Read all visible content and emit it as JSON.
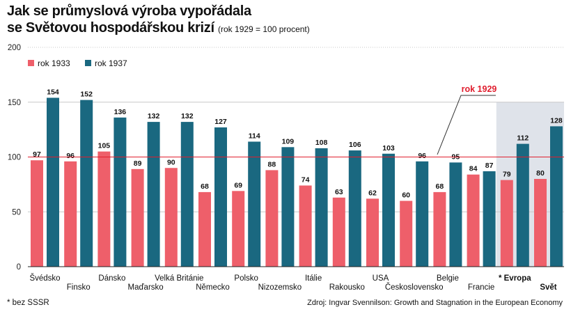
{
  "title_line1": "Jak se průmyslová výroba vypořádala",
  "title_line2": "se Světovou hospodářskou krizí",
  "subtitle": "(rok 1929 = 100 procent)",
  "footnote": "* bez SSSR",
  "source": "Zdroj: Ingvar Svennilson: Growth and Stagnation in the European Economy",
  "colors": {
    "rok1933": "#ee5f6a",
    "rok1937": "#1a6880",
    "reference": "#e01e2e",
    "highlight_bg": "#dfe3ea"
  },
  "chart_data": {
    "type": "bar",
    "categories": [
      "Švédsko",
      "Finsko",
      "Dánsko",
      "Maďarsko",
      "Velká Británie",
      "Německo",
      "Polsko",
      "Nizozemsko",
      "Itálie",
      "Rakousko",
      "USA",
      "Československo",
      "Belgie",
      "Francie",
      "* Evropa",
      "Svět"
    ],
    "bold_categories": [
      "* Evropa",
      "Svět"
    ],
    "highlighted_categories": [
      "* Evropa",
      "Svět"
    ],
    "series": [
      {
        "name": "rok 1933",
        "values": [
          97,
          96,
          105,
          89,
          90,
          68,
          69,
          88,
          74,
          63,
          62,
          60,
          68,
          84,
          79,
          80
        ]
      },
      {
        "name": "rok 1937",
        "values": [
          154,
          152,
          136,
          132,
          132,
          127,
          114,
          109,
          108,
          106,
          103,
          96,
          95,
          87,
          112,
          128
        ]
      }
    ],
    "yticks": [
      0,
      50,
      100,
      150,
      200
    ],
    "ylim": [
      0,
      200
    ],
    "reference_line": {
      "value": 100,
      "label": "rok 1929"
    },
    "grid": true,
    "legend_position": "top-left"
  }
}
